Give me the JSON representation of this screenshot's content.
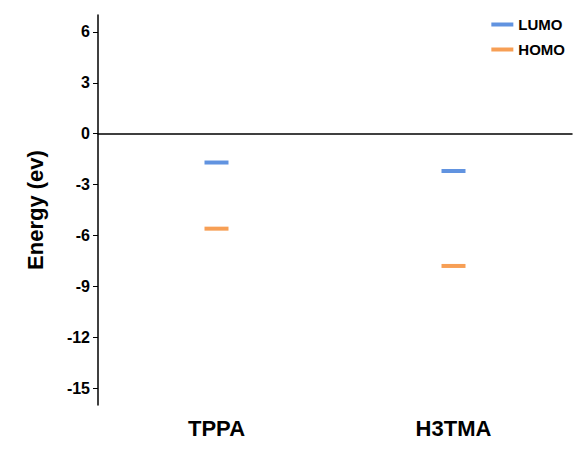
{
  "chart_data": {
    "type": "scatter",
    "y_label": "Energy (ev)",
    "categories": [
      "TPPA",
      "H3TMA"
    ],
    "series": [
      {
        "name": "LUMO",
        "color": "#3a78d8",
        "values": [
          -1.7,
          -2.2
        ],
        "marker": "line"
      },
      {
        "name": "HOMO",
        "color": "#f5872a",
        "values": [
          -5.6,
          -7.8
        ],
        "marker": "line"
      }
    ],
    "ylim": [
      -16,
      7
    ],
    "yticks": [
      -15,
      -12,
      -9,
      -6,
      -3,
      0,
      3,
      6
    ],
    "grid": false,
    "legend": "upper right"
  }
}
